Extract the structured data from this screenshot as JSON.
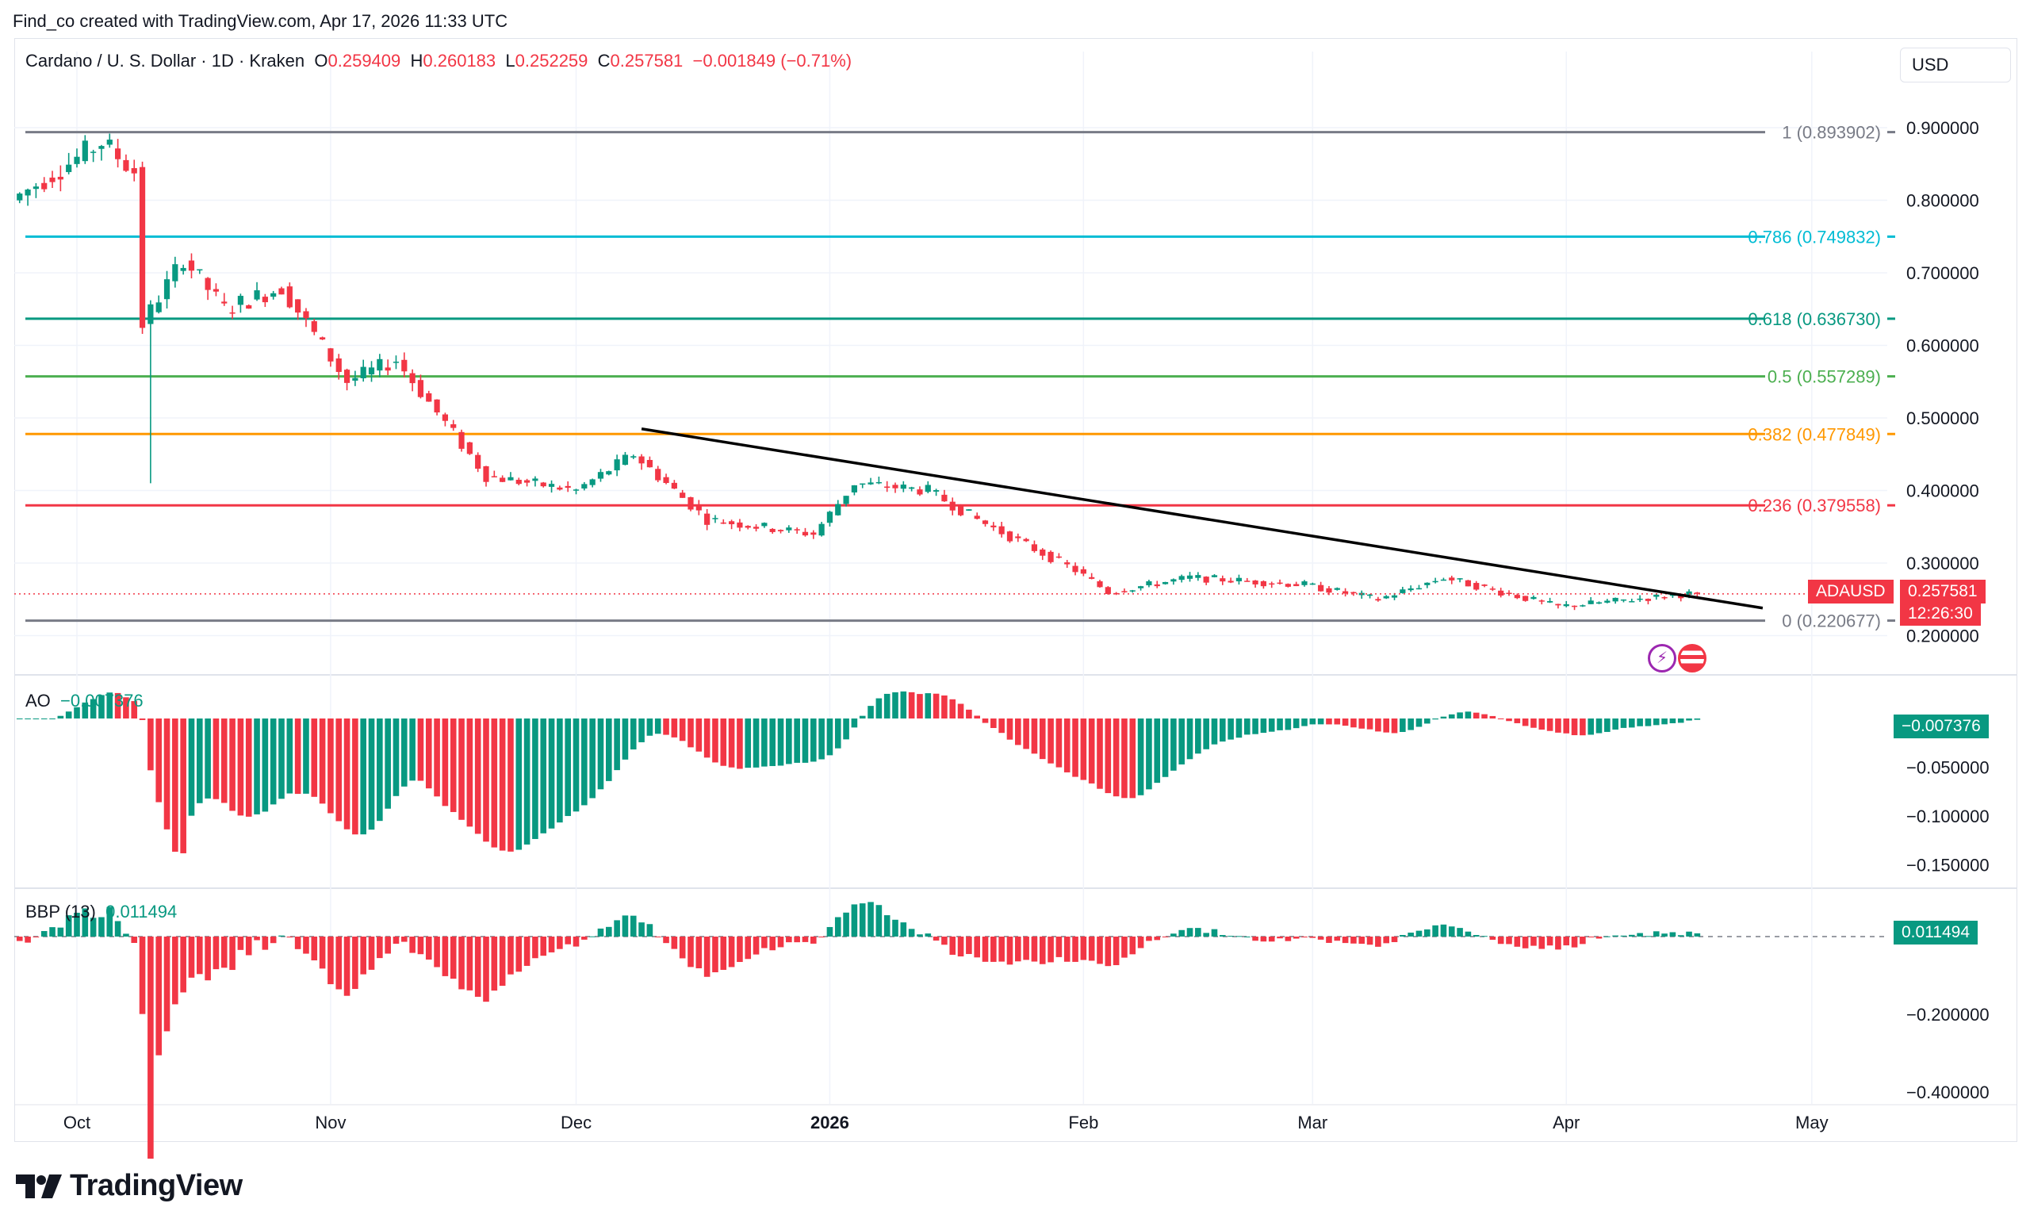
{
  "header": {
    "created_text": "Find_co created with TradingView.com, Apr 17, 2026 11:33 UTC"
  },
  "legend": {
    "symbol": "Cardano / U. S. Dollar · 1D · Kraken",
    "o_label": "O",
    "o_value": "0.259409",
    "h_label": "H",
    "h_value": "0.260183",
    "l_label": "L",
    "l_value": "0.252259",
    "c_label": "C",
    "c_value": "0.257581",
    "change": "−0.001849 (−0.71%)"
  },
  "currency_button": "USD",
  "ao": {
    "label": "AO",
    "value": "−0.007376",
    "badge": "−0.007376"
  },
  "bbp": {
    "label": "BBP (13)",
    "value": "0.011494",
    "badge": "0.011494"
  },
  "price_badge": {
    "symbol": "ADAUSD",
    "price": "0.257581",
    "countdown": "12:26:30"
  },
  "brand": {
    "name": "TradingView"
  },
  "colors": {
    "up": "#089981",
    "down": "#f23645",
    "text": "#131722",
    "axis_text": "#131722"
  },
  "chart_data": {
    "type": "candlestick",
    "title": "Cardano / U. S. Dollar · 1D · Kraken",
    "price_axis": {
      "ticks": [
        "0.900000",
        "0.800000",
        "0.700000",
        "0.600000",
        "0.500000",
        "0.400000",
        "0.300000",
        "0.200000"
      ],
      "range": [
        0.195,
        0.955
      ]
    },
    "time_axis": {
      "ticks": [
        "Oct",
        "Nov",
        "Dec",
        "2026",
        "Feb",
        "Mar",
        "Apr",
        "May"
      ]
    },
    "fib_levels": [
      {
        "label": "1 (0.893902)",
        "value": 0.893902,
        "color": "#787b86"
      },
      {
        "label": "0.786 (0.749832)",
        "value": 0.749832,
        "color": "#00bcd4"
      },
      {
        "label": "0.618 (0.636730)",
        "value": 0.63673,
        "color": "#089981"
      },
      {
        "label": "0.5 (0.557289)",
        "value": 0.557289,
        "color": "#4caf50"
      },
      {
        "label": "0.382 (0.477849)",
        "value": 0.477849,
        "color": "#ff9800"
      },
      {
        "label": "0.236 (0.379558)",
        "value": 0.379558,
        "color": "#f23645"
      },
      {
        "label": "0 (0.220677)",
        "value": 0.220677,
        "color": "#787b86"
      }
    ],
    "trendline": {
      "from": [
        "Dec 9, 2025",
        0.485
      ],
      "to": [
        "Apr 25, 2026",
        0.238
      ],
      "color": "#000000"
    },
    "current_price": 0.257581,
    "key_prices": [
      [
        "Sep 24",
        0.8
      ],
      [
        "Oct 5",
        0.88
      ],
      [
        "Oct 9",
        0.84
      ],
      [
        "Oct 10",
        0.63
      ],
      [
        "Oct 15",
        0.72
      ],
      [
        "Oct 20",
        0.65
      ],
      [
        "Oct 27",
        0.68
      ],
      [
        "Nov 4",
        0.55
      ],
      [
        "Nov 10",
        0.58
      ],
      [
        "Nov 21",
        0.42
      ],
      [
        "Dec 2",
        0.4
      ],
      [
        "Dec 9",
        0.45
      ],
      [
        "Dec 18",
        0.36
      ],
      [
        "Dec 31",
        0.34
      ],
      [
        "Jan 5",
        0.41
      ],
      [
        "Jan 14",
        0.4
      ],
      [
        "Jan 20",
        0.36
      ],
      [
        "Feb 1",
        0.29
      ],
      [
        "Feb 5",
        0.26
      ],
      [
        "Feb 15",
        0.28
      ],
      [
        "Mar 1",
        0.27
      ],
      [
        "Mar 10",
        0.25
      ],
      [
        "Mar 18",
        0.28
      ],
      [
        "Apr 1",
        0.24
      ],
      [
        "Apr 17",
        0.2576
      ]
    ],
    "ao_axis": {
      "ticks": [
        "-0.050000",
        "-0.100000",
        "-0.150000"
      ]
    },
    "bbp_axis": {
      "ticks": [
        "-0.200000",
        "-0.400000"
      ]
    }
  }
}
